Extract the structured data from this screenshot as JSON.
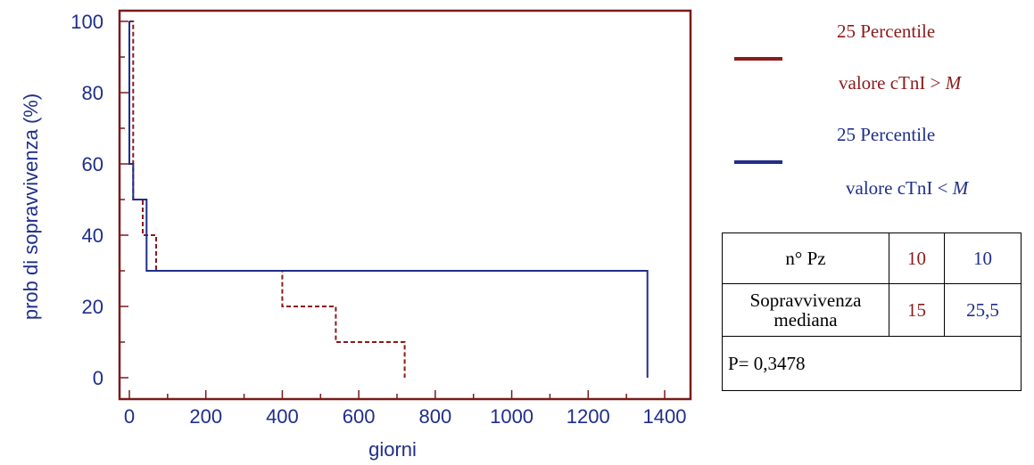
{
  "chart_data": {
    "type": "line",
    "step": true,
    "xlabel": "giorni",
    "ylabel": "prob di sopravvivenza (%)",
    "xlim": [
      0,
      1400
    ],
    "ylim": [
      0,
      100
    ],
    "x_ticks": [
      "0",
      "200",
      "400",
      "600",
      "800",
      "1000",
      "1200",
      "1400"
    ],
    "y_ticks": [
      "0",
      "20",
      "40",
      "60",
      "80",
      "100"
    ],
    "series": [
      {
        "color": "#8b1a1a",
        "dash": "dashed",
        "x": [
          0,
          10,
          10,
          35,
          35,
          70,
          70,
          400,
          400,
          540,
          540,
          720,
          720
        ],
        "y": [
          100,
          100,
          50,
          50,
          40,
          40,
          30,
          30,
          20,
          20,
          10,
          10,
          0
        ]
      },
      {
        "color": "#1f2e8a",
        "dash": "solid",
        "x": [
          0,
          0,
          10,
          10,
          45,
          45,
          1355,
          1355
        ],
        "y": [
          100,
          60,
          60,
          50,
          50,
          30,
          30,
          0
        ]
      }
    ]
  },
  "legend": {
    "red": {
      "line1": "25 Percentile",
      "line2_prefix": "valore cTnI > ",
      "line2_var": "M",
      "color": "#8b1a1a"
    },
    "blue": {
      "line1": "25 Percentile",
      "line2_prefix": "valore cTnI < ",
      "line2_var": "M",
      "color": "#1f2e8a"
    }
  },
  "table": {
    "row1_label": "n° Pz",
    "row1_red": "10",
    "row1_blue": "10",
    "row2_label_a": "Sopravvivenza",
    "row2_label_b": "mediana",
    "row2_red": "15",
    "row2_blue": "25,5",
    "pvalue": "P= 0,3478"
  }
}
